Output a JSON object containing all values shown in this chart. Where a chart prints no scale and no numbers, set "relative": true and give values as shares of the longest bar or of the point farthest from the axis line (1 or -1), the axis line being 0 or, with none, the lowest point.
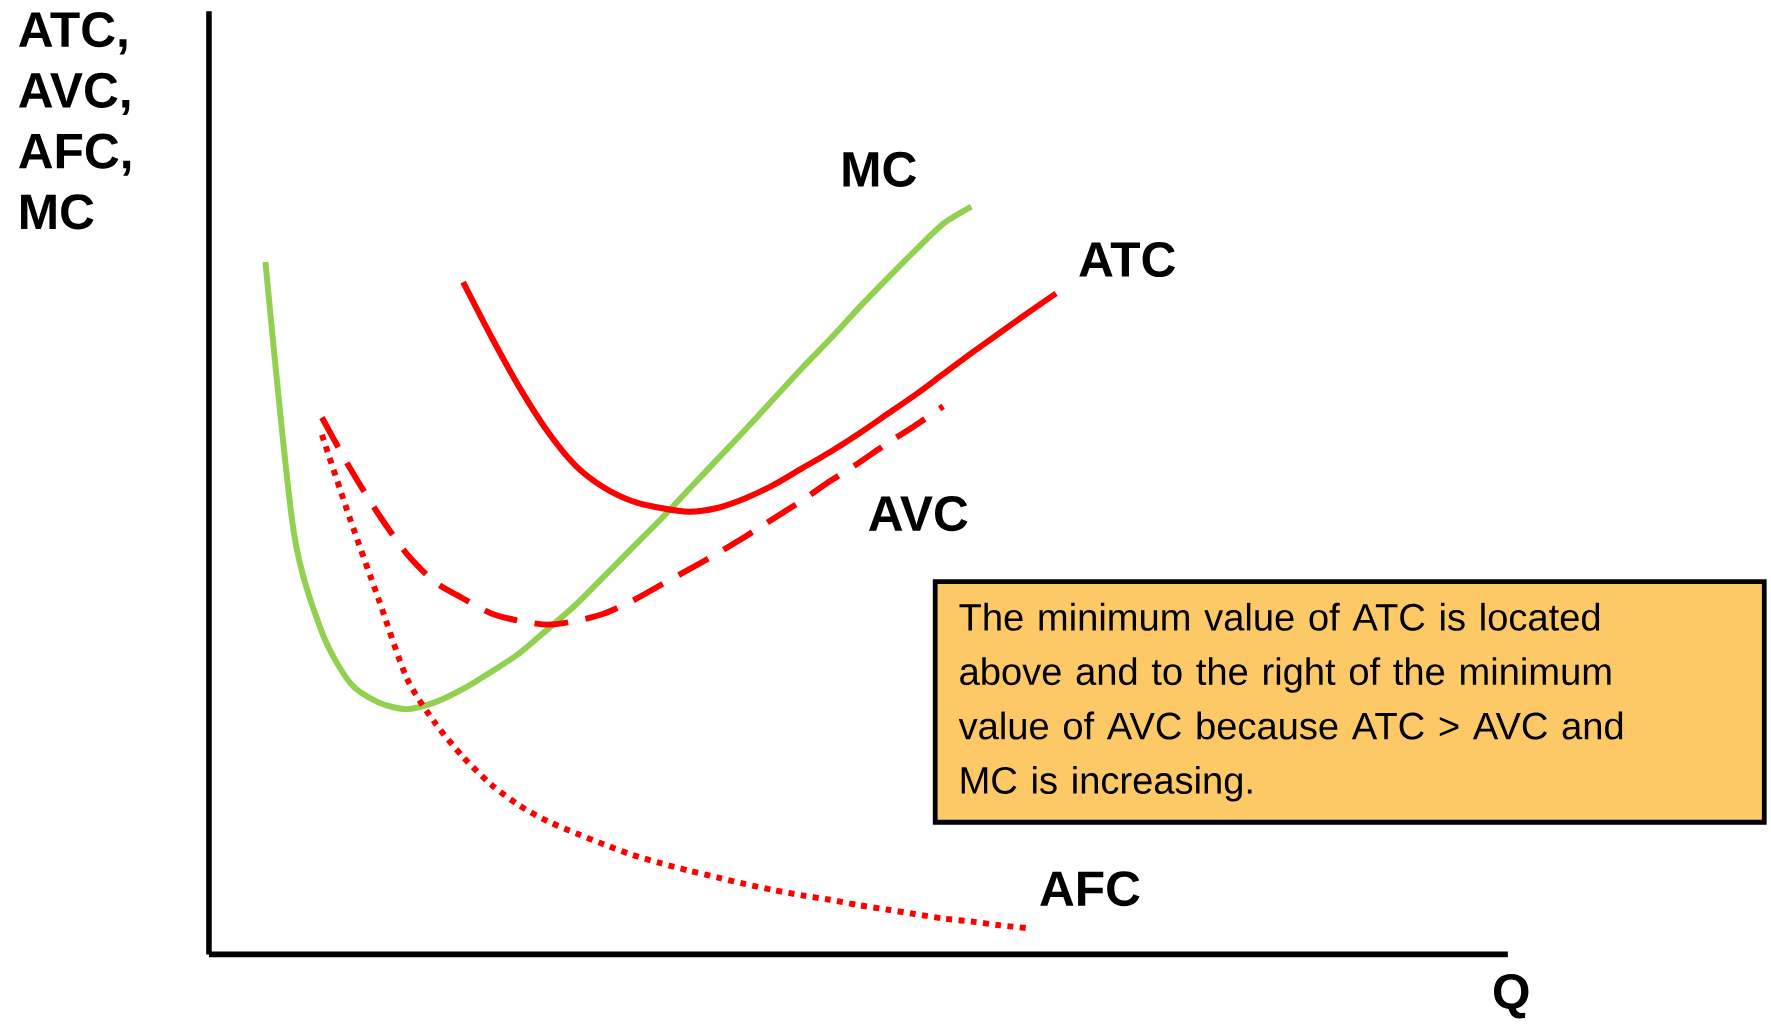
{
  "chart_data": {
    "type": "line",
    "relative": true,
    "legend": false,
    "xlabel": "Q",
    "ylabel": "ATC, AVC, AFC, MC",
    "categories": [
      null,
      null,
      null,
      null,
      null,
      null,
      null,
      null,
      null,
      null,
      null,
      null,
      null,
      null,
      null,
      null,
      null,
      null,
      null,
      null,
      null,
      null,
      null,
      null,
      null,
      null,
      null,
      null,
      null,
      null,
      null,
      null,
      null,
      null,
      null,
      null,
      null,
      null,
      null,
      null,
      null,
      null,
      null,
      null,
      null,
      null,
      null
    ],
    "series": [
      {
        "name": "MC",
        "color": "#92d050",
        "line_style": "solid",
        "values": [
          null,
          null,
          0.926,
          0.566,
          0.431,
          0.363,
          0.337,
          0.328,
          0.337,
          0.355,
          0.378,
          0.403,
          0.435,
          0.468,
          0.506,
          0.544,
          0.582,
          0.622,
          0.662,
          0.702,
          0.743,
          0.784,
          0.823,
          0.864,
          0.903,
          0.941,
          0.977,
          1.0,
          null,
          null,
          null,
          null,
          null,
          null,
          null,
          null,
          null,
          null,
          null,
          null,
          null,
          null,
          null,
          null,
          null,
          null,
          null
        ]
      },
      {
        "name": "ATC",
        "color": "#ff0000",
        "line_style": "solid",
        "values": [
          null,
          null,
          null,
          null,
          null,
          null,
          null,
          null,
          null,
          0.899,
          0.826,
          0.758,
          0.699,
          0.653,
          0.624,
          0.606,
          0.597,
          0.592,
          0.597,
          0.61,
          0.628,
          0.65,
          0.672,
          0.696,
          0.722,
          0.748,
          0.776,
          0.804,
          0.831,
          0.858,
          0.884,
          null,
          null,
          null,
          null,
          null,
          null,
          null,
          null,
          null,
          null,
          null,
          null,
          null,
          null,
          null,
          null
        ]
      },
      {
        "name": "AVC",
        "color": "#ff0000",
        "line_style": "dashed",
        "values": [
          null,
          null,
          null,
          null,
          0.718,
          0.65,
          0.589,
          0.536,
          0.498,
          0.476,
          0.456,
          0.446,
          0.441,
          0.446,
          0.456,
          0.473,
          0.494,
          0.515,
          0.536,
          0.559,
          0.583,
          0.607,
          0.633,
          0.657,
          0.683,
          0.707,
          0.733,
          null,
          null,
          null,
          null,
          null,
          null,
          null,
          null,
          null,
          null,
          null,
          null,
          null,
          null,
          null,
          null,
          null,
          null,
          null,
          null
        ]
      },
      {
        "name": "AFC",
        "color": "#ff0000",
        "line_style": "dotted",
        "values": [
          null,
          null,
          null,
          null,
          0.695,
          0.582,
          0.476,
          0.37,
          0.31,
          0.264,
          0.227,
          0.199,
          0.178,
          0.162,
          0.147,
          0.133,
          0.122,
          0.112,
          0.103,
          0.094,
          0.086,
          0.079,
          0.073,
          0.066,
          0.06,
          0.054,
          0.048,
          0.044,
          0.039,
          0.035,
          null,
          null,
          null,
          null,
          null,
          null,
          null,
          null,
          null,
          null,
          null,
          null,
          null,
          null,
          null,
          null,
          null
        ]
      }
    ],
    "annotations": [
      "The minimum value of ATC is located above and to the right of the minimum value of AVC because ATC > AVC  and MC is increasing."
    ]
  }
}
